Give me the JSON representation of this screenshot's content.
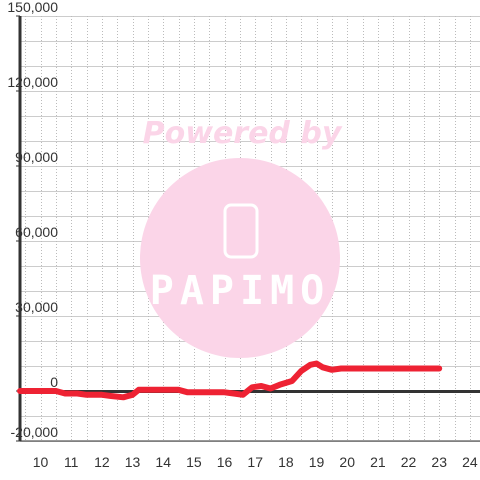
{
  "chart_data": {
    "type": "line",
    "title": "",
    "xlabel": "",
    "ylabel": "",
    "x_range": [
      9.33,
      24.33
    ],
    "y_range": [
      -20000,
      150000
    ],
    "x_ticks": [
      "10",
      "11",
      "12",
      "13",
      "14",
      "15",
      "16",
      "17",
      "18",
      "19",
      "20",
      "21",
      "22",
      "23",
      "24"
    ],
    "y_ticks": [
      "150,000",
      "120,000",
      "90,000",
      "60,000",
      "30,000",
      "0",
      "-20,000"
    ],
    "y_tick_values": [
      150000,
      120000,
      90000,
      60000,
      30000,
      0,
      -20000
    ],
    "grid": true,
    "line_color": "#ee2233",
    "series": [
      {
        "x": [
          9.33,
          10.0,
          10.5,
          10.8,
          11.2,
          11.5,
          12.0,
          12.3,
          12.7,
          13.0,
          13.2,
          13.5,
          14.0,
          14.5,
          14.8,
          15.0,
          15.5,
          16.0,
          16.3,
          16.6,
          16.9,
          17.2,
          17.5,
          17.8,
          18.2,
          18.5,
          18.8,
          19.0,
          19.2,
          19.5,
          19.8,
          20.0,
          20.5,
          21.0,
          21.5,
          22.0,
          22.5,
          23.0
        ],
        "y": [
          0,
          0,
          0,
          -1000,
          -1000,
          -1500,
          -1500,
          -2000,
          -2500,
          -1500,
          500,
          500,
          500,
          500,
          -500,
          -500,
          -500,
          -500,
          -1000,
          -1500,
          1500,
          2000,
          1000,
          2500,
          4000,
          8000,
          10500,
          11000,
          9500,
          8500,
          9000,
          9000,
          9000,
          9000,
          9000,
          9000,
          9000,
          9000
        ]
      }
    ]
  },
  "watermark": {
    "text": "Powered by",
    "logo_text": "PAPIMO",
    "color": "#fbd5e8"
  }
}
